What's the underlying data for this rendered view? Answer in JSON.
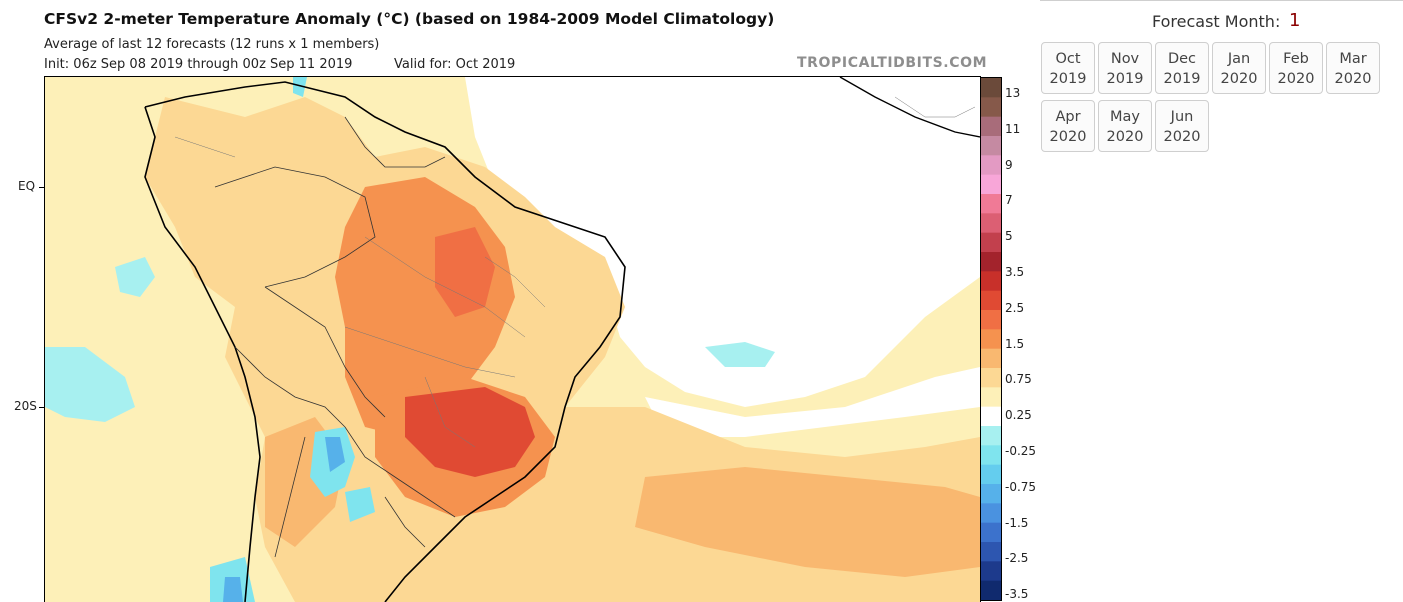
{
  "chart_data": {
    "type": "heatmap",
    "title": "CFSv2 2-meter Temperature Anomaly (°C) (based on 1984-2009 Model Climatology)",
    "subtitle": "Average of last 12 forecasts (12 runs x 1 members)",
    "init": "Init: 06z Sep 08 2019 through 00z Sep 11 2019",
    "valid": "Valid for: Oct 2019",
    "brand": "TROPICALTIDBITS.COM",
    "lat_labels": [
      "EQ",
      "20S"
    ],
    "colorbar_labels": [
      "13",
      "11",
      "9",
      "7",
      "5",
      "3.5",
      "2.5",
      "1.5",
      "0.75",
      "0.25",
      "-0.25",
      "-0.75",
      "-1.5",
      "-2.5",
      "-3.5"
    ],
    "colorbar_colors": [
      "#6b4a3a",
      "#86594a",
      "#a86c7a",
      "#c58aa2",
      "#e39ac3",
      "#f8a6d8",
      "#f07a96",
      "#dc5f73",
      "#c2404d",
      "#a3232c",
      "#c8302a",
      "#e04a33",
      "#f06f44",
      "#f5924f",
      "#f9b870",
      "#fcd894",
      "#fdf0b8",
      "#ffffff",
      "#a7f0f0",
      "#7fe4ee",
      "#64cdee",
      "#56b1ea",
      "#4a92e0",
      "#3c72cc",
      "#2d56b0",
      "#1d3a8c",
      "#102a6e"
    ]
  },
  "panel": {
    "forecast_month_label": "Forecast Month:",
    "forecast_month_value": "1",
    "months": [
      {
        "m": "Oct",
        "y": "2019"
      },
      {
        "m": "Nov",
        "y": "2019"
      },
      {
        "m": "Dec",
        "y": "2019"
      },
      {
        "m": "Jan",
        "y": "2020"
      },
      {
        "m": "Feb",
        "y": "2020"
      },
      {
        "m": "Mar",
        "y": "2020"
      },
      {
        "m": "Apr",
        "y": "2020"
      },
      {
        "m": "May",
        "y": "2020"
      },
      {
        "m": "Jun",
        "y": "2020"
      }
    ]
  }
}
